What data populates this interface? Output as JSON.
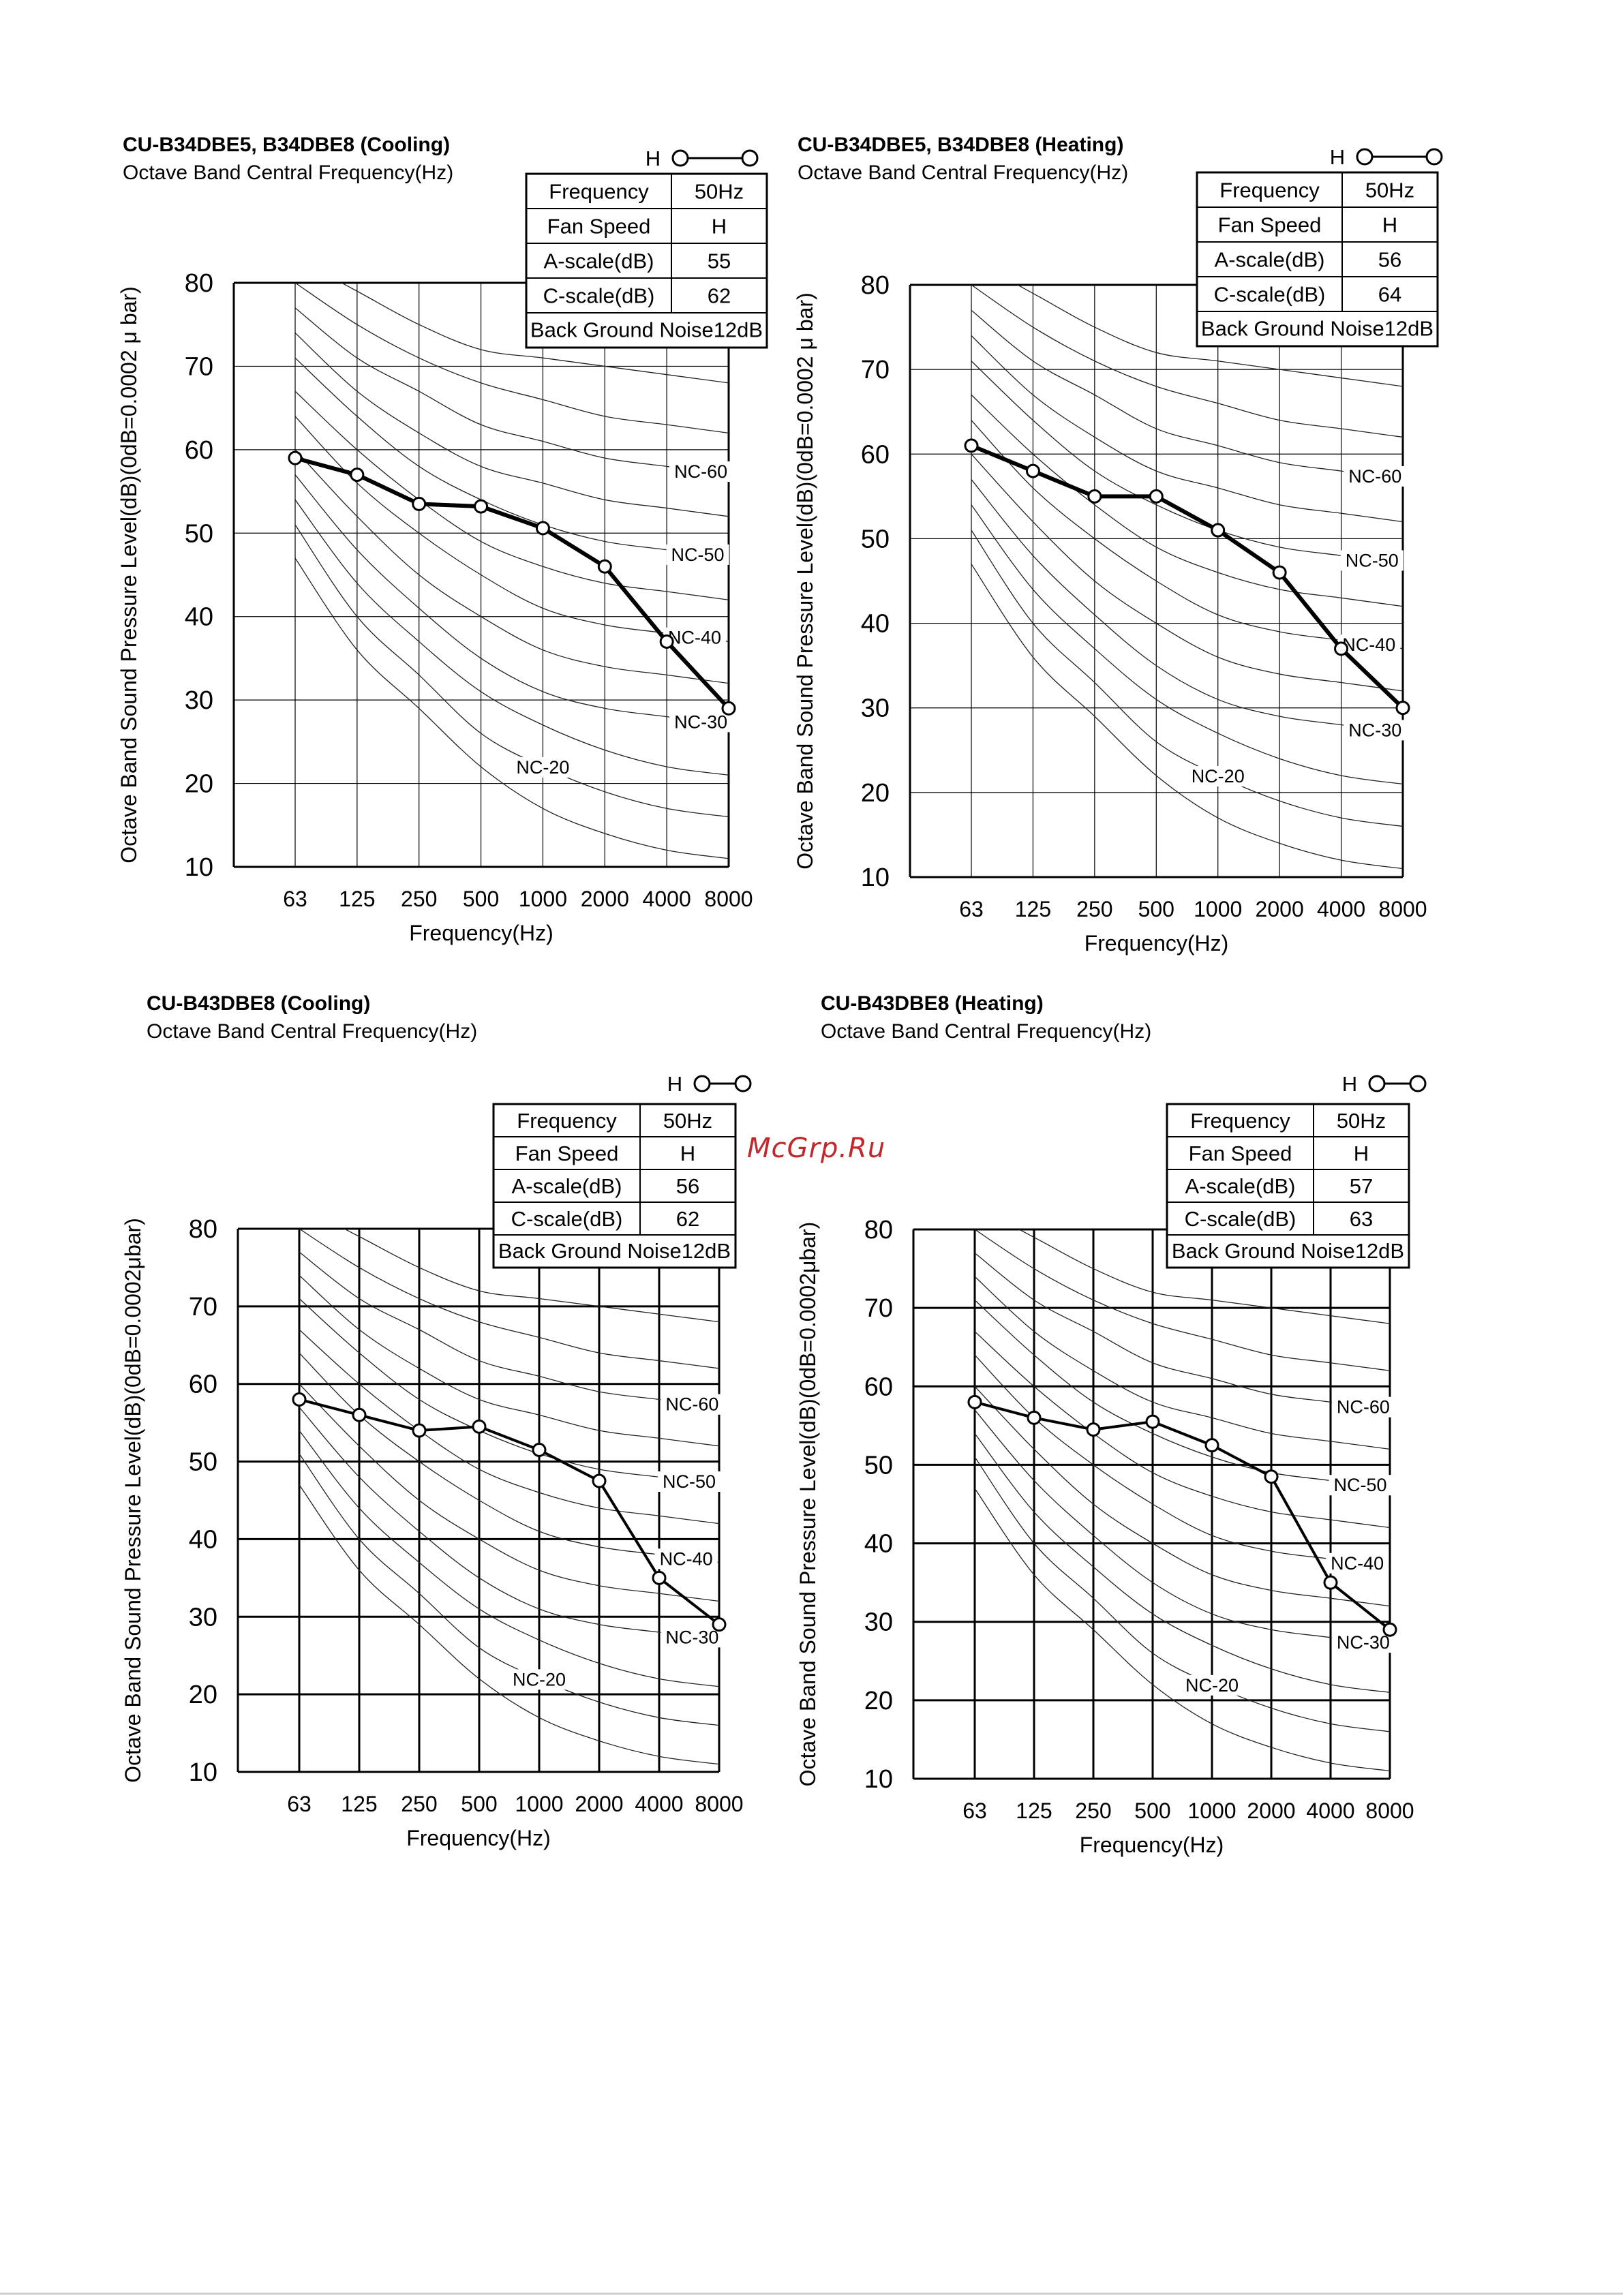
{
  "watermark": "McGrp.Ru",
  "legend_symbol_label": "H",
  "table_labels": {
    "frequency": "Frequency",
    "fan_speed": "Fan Speed",
    "a_scale": "A-scale(dB)",
    "c_scale": "C-scale(dB)"
  },
  "nc_labels": [
    "NC-20",
    "NC-30",
    "NC-40",
    "NC-50",
    "NC-60"
  ],
  "chart_data": [
    {
      "type": "line",
      "title": "CU-B34DBE5, B34DBE8 (Cooling)",
      "subtitle": "Octave Band Central Frequency(Hz)",
      "xlabel": "Frequency(Hz)",
      "ylabel": "Octave Band Sound Pressure Level(dB)(0dB=0.0002 μ bar)",
      "categories": [
        "63",
        "125",
        "250",
        "500",
        "1000",
        "2000",
        "4000",
        "8000"
      ],
      "yticks": [
        "10",
        "20",
        "30",
        "40",
        "50",
        "60",
        "70",
        "80"
      ],
      "ylim": [
        10,
        80
      ],
      "series": [
        {
          "name": "H",
          "values": [
            59,
            57,
            53.5,
            53.2,
            50.6,
            46,
            37,
            29
          ]
        }
      ],
      "info": {
        "frequency": "50Hz",
        "fan_speed": "H",
        "a_scale": "55",
        "c_scale": "62",
        "background_noise": "Back Ground Noise12dB"
      }
    },
    {
      "type": "line",
      "title": "CU-B34DBE5, B34DBE8 (Heating)",
      "subtitle": "Octave Band Central Frequency(Hz)",
      "xlabel": "Frequency(Hz)",
      "ylabel": "Octave Band Sound Pressure Level(dB)(0dB=0.0002 μ bar)",
      "categories": [
        "63",
        "125",
        "250",
        "500",
        "1000",
        "2000",
        "4000",
        "8000"
      ],
      "yticks": [
        "10",
        "20",
        "30",
        "40",
        "50",
        "60",
        "70",
        "80"
      ],
      "ylim": [
        10,
        80
      ],
      "series": [
        {
          "name": "H",
          "values": [
            61,
            58,
            55,
            55,
            51,
            46,
            37,
            30
          ]
        }
      ],
      "info": {
        "frequency": "50Hz",
        "fan_speed": "H",
        "a_scale": "56",
        "c_scale": "64",
        "background_noise": "Back Ground Noise12dB"
      }
    },
    {
      "type": "line",
      "title": "CU-B43DBE8 (Cooling)",
      "subtitle": "Octave Band Central Frequency(Hz)",
      "xlabel": "Frequency(Hz)",
      "ylabel": "Octave Band Sound Pressure Level(dB)(0dB=0.0002μbar)",
      "categories": [
        "63",
        "125",
        "250",
        "500",
        "1000",
        "2000",
        "4000",
        "8000"
      ],
      "yticks": [
        "10",
        "20",
        "30",
        "40",
        "50",
        "60",
        "70",
        "80"
      ],
      "ylim": [
        10,
        80
      ],
      "series": [
        {
          "name": "H",
          "values": [
            58,
            56,
            54,
            54.5,
            51.5,
            47.5,
            35,
            29
          ]
        }
      ],
      "info": {
        "frequency": "50Hz",
        "fan_speed": "H",
        "a_scale": "56",
        "c_scale": "62",
        "background_noise": "Back Ground Noise12dB"
      }
    },
    {
      "type": "line",
      "title": "CU-B43DBE8 (Heating)",
      "subtitle": "Octave Band Central Frequency(Hz)",
      "xlabel": "Frequency(Hz)",
      "ylabel": "Octave Band Sound Pressure Level(dB)(0dB=0.0002μbar)",
      "categories": [
        "63",
        "125",
        "250",
        "500",
        "1000",
        "2000",
        "4000",
        "8000"
      ],
      "yticks": [
        "10",
        "20",
        "30",
        "40",
        "50",
        "60",
        "70",
        "80"
      ],
      "ylim": [
        10,
        80
      ],
      "series": [
        {
          "name": "H",
          "values": [
            58,
            56,
            54.5,
            55.5,
            52.5,
            48.5,
            35,
            29
          ]
        }
      ],
      "info": {
        "frequency": "50Hz",
        "fan_speed": "H",
        "a_scale": "57",
        "c_scale": "63",
        "background_noise": "Back Ground Noise12dB"
      }
    }
  ]
}
